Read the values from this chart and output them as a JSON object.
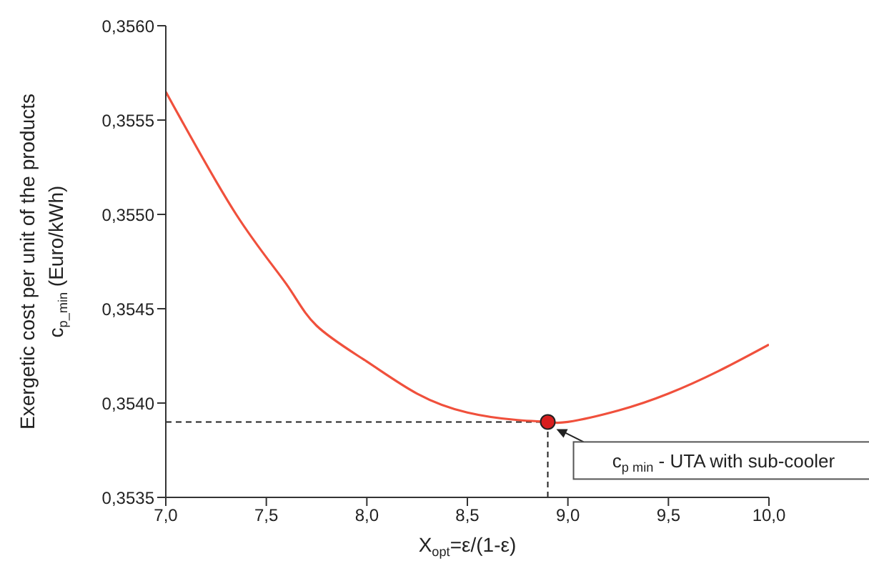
{
  "chart_data": {
    "type": "line",
    "xlabel": "X$_{opt}$=ε/(1-ε)",
    "ylabel": "Exergetic cost per unit of the products\nc$_{p_min}$ (Euro/kWh)",
    "series": [
      {
        "color": "#f0503c",
        "x": [
          7.0,
          7.35,
          7.6,
          7.75,
          8.0,
          8.25,
          8.5,
          8.75,
          8.9,
          9.0,
          9.25,
          9.5,
          9.75,
          10.0
        ],
        "values": [
          0.35565,
          0.355,
          0.35463,
          0.35441,
          0.35422,
          0.35405,
          0.35395,
          0.35391,
          0.3539,
          0.3539,
          0.35396,
          0.35405,
          0.35417,
          0.35431
        ]
      },
      {
        "type": "scatter",
        "color": "#d81e1e",
        "x": [
          8.9
        ],
        "values": [
          0.3539
        ]
      }
    ],
    "xlim": [
      7.0,
      10.0
    ],
    "xticks": [
      {
        "value": 7,
        "label": "7,0"
      },
      {
        "value": 7.5,
        "label": "7,5"
      },
      {
        "value": 8,
        "label": "8,0"
      },
      {
        "value": 8.5,
        "label": "8,5"
      },
      {
        "value": 9,
        "label": "9,0"
      },
      {
        "value": 9.5,
        "label": "9,5"
      },
      {
        "value": 10,
        "label": "10,0"
      }
    ],
    "ylim": [
      0.3535,
      0.356
    ],
    "yticks": [
      {
        "value": 0.3535,
        "label": "0,3535"
      },
      {
        "value": 0.354,
        "label": "0,3540"
      },
      {
        "value": 0.3545,
        "label": "0,3545"
      },
      {
        "value": 0.355,
        "label": "0,3550"
      },
      {
        "value": 0.3555,
        "label": "0,3555"
      },
      {
        "value": 0.356,
        "label": "0,3560"
      }
    ],
    "ref_lines": [
      {
        "axis": "x",
        "value": 8.9,
        "line_style": "dashed",
        "color": "#222222"
      },
      {
        "axis": "y",
        "value": 0.3539,
        "line_style": "dashed",
        "color": "#222222"
      }
    ],
    "annotations": [
      "c$_{p min}$ - UTA with sub-cooler"
    ],
    "grid": false,
    "legend": false,
    "line_style": "solid"
  }
}
